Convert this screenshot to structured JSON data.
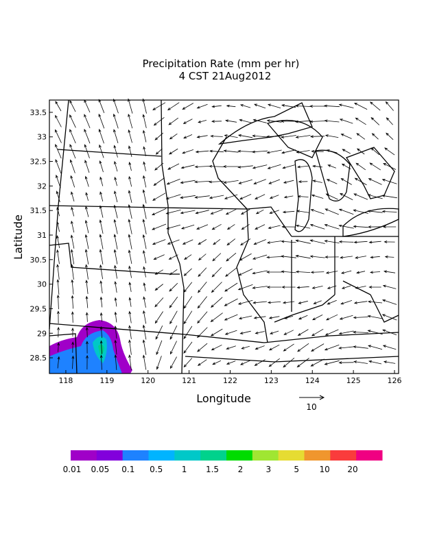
{
  "map": {
    "title_lines": [
      "Precipitation Rate (mm per hr)",
      "4 CST 21Aug2012"
    ],
    "xlabel": "Longitude",
    "ylabel": "Latitude",
    "xlim": [
      117.6,
      126.1
    ],
    "ylim": [
      28.18,
      33.75
    ],
    "xticks": [
      118,
      119,
      120,
      121,
      122,
      123,
      124,
      125,
      126
    ],
    "yticks": [
      28.5,
      29,
      29.5,
      30,
      30.5,
      31,
      31.5,
      32,
      32.5,
      33,
      33.5
    ],
    "reference_vector": "10"
  },
  "colorbar": {
    "colors": [
      "#a000c8",
      "#8200dc",
      "#1e82ff",
      "#00b4ff",
      "#00c8c8",
      "#00d28c",
      "#00dc00",
      "#a0e632",
      "#e6dc32",
      "#f0962d",
      "#fa3c3c",
      "#f00082"
    ],
    "labels": [
      "0.01",
      "0.05",
      "0.1",
      "0.5",
      "1",
      "1.5",
      "2",
      "3",
      "5",
      "10",
      "20"
    ]
  }
}
